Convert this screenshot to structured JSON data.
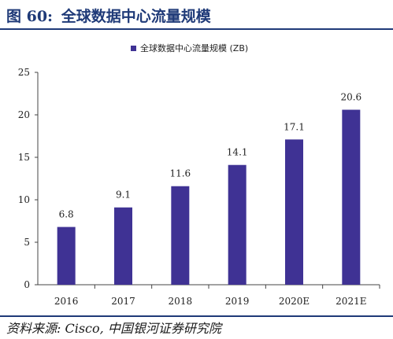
{
  "header": {
    "figure_label": "图 60:",
    "title": "全球数据中心流量规模"
  },
  "source": "资料来源: Cisco, 中国银河证券研究院",
  "colors": {
    "bar": "#3f3294",
    "header": "#1f3a78",
    "axis": "#444444"
  },
  "chart_data": {
    "type": "bar",
    "categories": [
      "2016",
      "2017",
      "2018",
      "2019",
      "2020E",
      "2021E"
    ],
    "series": [
      {
        "name": "全球数据中心流量规模 (ZB)",
        "values": [
          6.8,
          9.1,
          11.6,
          14.1,
          17.1,
          20.6
        ]
      }
    ],
    "data_labels": [
      "6.8",
      "9.1",
      "11.6",
      "14.1",
      "17.1",
      "20.6"
    ],
    "y_ticks": [
      0,
      5,
      10,
      15,
      20,
      25
    ],
    "ylim": [
      0,
      25
    ],
    "grid": false,
    "legend_position": "top-center"
  }
}
